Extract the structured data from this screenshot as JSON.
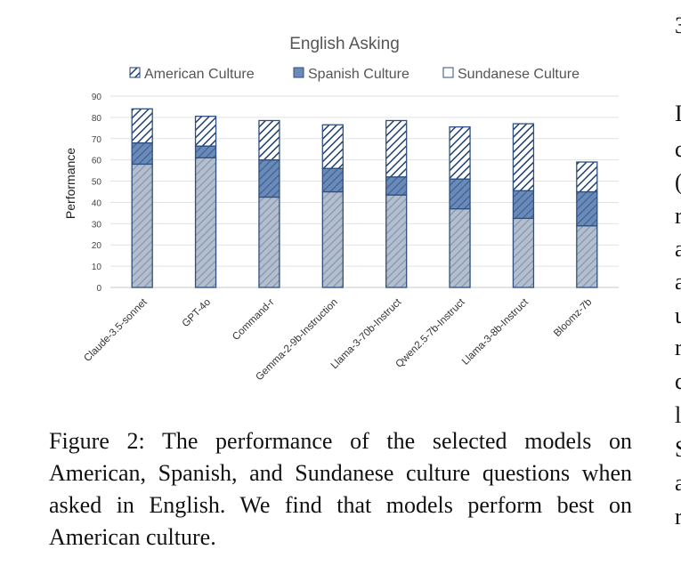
{
  "chart_data": {
    "type": "bar",
    "stacked": true,
    "title": "English Asking",
    "ylabel": "Performance",
    "xlabel": "",
    "ylim": [
      0,
      90
    ],
    "yticks": [
      0,
      10,
      20,
      30,
      40,
      50,
      60,
      70,
      80,
      90
    ],
    "grid": true,
    "legend_position": "top",
    "categories": [
      "Claude-3.5-sonnet",
      "GPT-4o",
      "Command-r",
      "Gemma-2-9b-Instruction",
      "Llama-3-70b-Instruct",
      "Qwen2.5-7b-Instruct",
      "Llama-3-8b-Instruct",
      "Bloomz-7b"
    ],
    "series": [
      {
        "name": "Sundanese Culture",
        "values": [
          58,
          61,
          42.5,
          45,
          43.5,
          37,
          32.5,
          29
        ],
        "color": "#a9b6c8"
      },
      {
        "name": "Spanish Culture",
        "values": [
          10,
          5.5,
          17.5,
          11,
          8.5,
          14,
          13,
          16
        ],
        "color": "#5b7fb0"
      },
      {
        "name": "American Culture",
        "values": [
          16,
          14,
          18.5,
          20.5,
          26.5,
          24.5,
          31.5,
          14
        ],
        "color": "#ffffff"
      }
    ]
  },
  "legend": [
    {
      "key": "american",
      "label": "American Culture"
    },
    {
      "key": "spanish",
      "label": "Spanish Culture"
    },
    {
      "key": "sundanese",
      "label": "Sundanese Culture"
    }
  ],
  "caption": "Figure 2: The performance of the selected models on American, Spanish, and Sundanese culture questions when asked in English. We find that models perform best on American culture.",
  "right_column": [
    "3",
    "I",
    "c",
    "(",
    "r",
    "a",
    "a",
    "u",
    "r",
    "c",
    "l",
    "S",
    "a",
    "r"
  ]
}
